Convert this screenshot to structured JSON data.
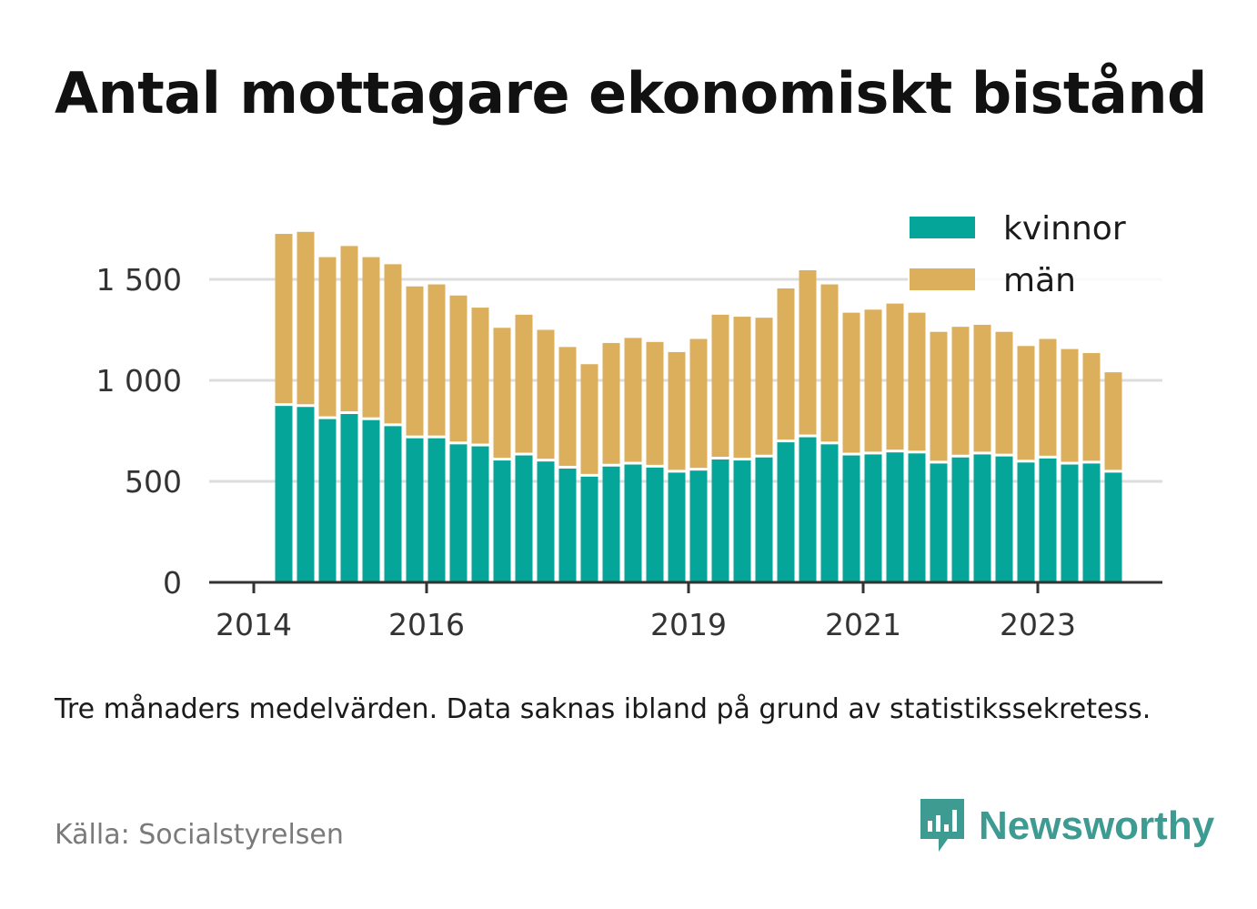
{
  "title": "Antal mottagare ekonomiskt bistånd",
  "note": "Tre månaders medelvärden. Data saknas ibland på grund av statistikssekretess.",
  "source": "Källa: Socialstyrelsen",
  "brand": {
    "name": "Newsworthy",
    "icon": "bar-chart-speech-bubble-icon",
    "color": "#3e9b92"
  },
  "colors": {
    "kvinnor": "#06a59a",
    "man": "#dcaf5c",
    "grid": "#dddddd",
    "axis": "#333333"
  },
  "chart_data": {
    "type": "bar",
    "stacked": true,
    "grid": true,
    "legend_position": "top-right",
    "ylim": [
      0,
      1800
    ],
    "yticks": [
      0,
      500,
      1000,
      1500
    ],
    "ytick_labels": [
      "0",
      "500",
      "1 000",
      "1 500"
    ],
    "xtick_labels": [
      "2014",
      "2016",
      "2019",
      "2021",
      "2023"
    ],
    "categories": [
      "2014Q2",
      "2014Q3",
      "2014Q4",
      "2015Q1",
      "2015Q2",
      "2015Q3",
      "2015Q4",
      "2016Q1",
      "2016Q2",
      "2016Q3",
      "2016Q4",
      "2017Q1",
      "2017Q2",
      "2017Q3",
      "2017Q4",
      "2018Q1",
      "2018Q2",
      "2018Q3",
      "2018Q4",
      "2019Q1",
      "2019Q2",
      "2019Q3",
      "2019Q4",
      "2020Q1",
      "2020Q2",
      "2020Q3",
      "2020Q4",
      "2021Q1",
      "2021Q2",
      "2021Q3",
      "2021Q4",
      "2022Q1",
      "2022Q2",
      "2022Q3",
      "2022Q4",
      "2023Q1",
      "2023Q2",
      "2023Q3",
      "2023Q4"
    ],
    "series": [
      {
        "name": "kvinnor",
        "values": [
          880,
          875,
          815,
          840,
          810,
          780,
          720,
          720,
          690,
          680,
          610,
          635,
          605,
          570,
          530,
          580,
          590,
          575,
          550,
          560,
          615,
          610,
          625,
          700,
          725,
          690,
          635,
          640,
          650,
          645,
          595,
          625,
          640,
          630,
          600,
          620,
          590,
          595,
          550
        ]
      },
      {
        "name": "män",
        "values": [
          845,
          860,
          795,
          825,
          800,
          795,
          745,
          755,
          730,
          680,
          650,
          690,
          645,
          595,
          550,
          605,
          620,
          615,
          590,
          645,
          710,
          705,
          685,
          755,
          820,
          785,
          700,
          710,
          730,
          690,
          645,
          640,
          635,
          610,
          570,
          585,
          565,
          540,
          490
        ]
      }
    ]
  }
}
